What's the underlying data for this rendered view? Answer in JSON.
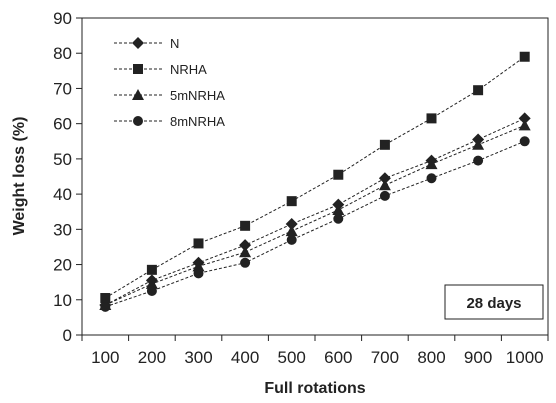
{
  "chart_data": {
    "type": "line",
    "x": [
      100,
      200,
      300,
      400,
      500,
      600,
      700,
      800,
      900,
      1000
    ],
    "xlabel": "Full rotations",
    "ylabel": "Weight loss (%)",
    "ylim": [
      0,
      90
    ],
    "yticks": [
      0,
      10,
      20,
      30,
      40,
      50,
      60,
      70,
      80,
      90
    ],
    "grid": false,
    "legend_position": "top-left",
    "annotation": "28 days",
    "line_style": "dashed",
    "color": "#222222",
    "series": [
      {
        "name": "N",
        "marker": "diamond",
        "values": [
          8.5,
          15.5,
          20.5,
          25.5,
          31.5,
          37,
          44.5,
          49.5,
          55.5,
          61.5
        ]
      },
      {
        "name": "NRHA",
        "marker": "square",
        "values": [
          10.5,
          18.5,
          26,
          31,
          38,
          45.5,
          54,
          61.5,
          69.5,
          79
        ]
      },
      {
        "name": "5mNRHA",
        "marker": "triangle",
        "values": [
          8.5,
          14.5,
          19.5,
          23.5,
          29.5,
          35.5,
          42.5,
          48.5,
          54,
          59.5
        ]
      },
      {
        "name": "8mNRHA",
        "marker": "circle",
        "values": [
          8,
          12.5,
          17.5,
          20.5,
          27,
          33,
          39.5,
          44.5,
          49.5,
          55
        ]
      }
    ]
  }
}
